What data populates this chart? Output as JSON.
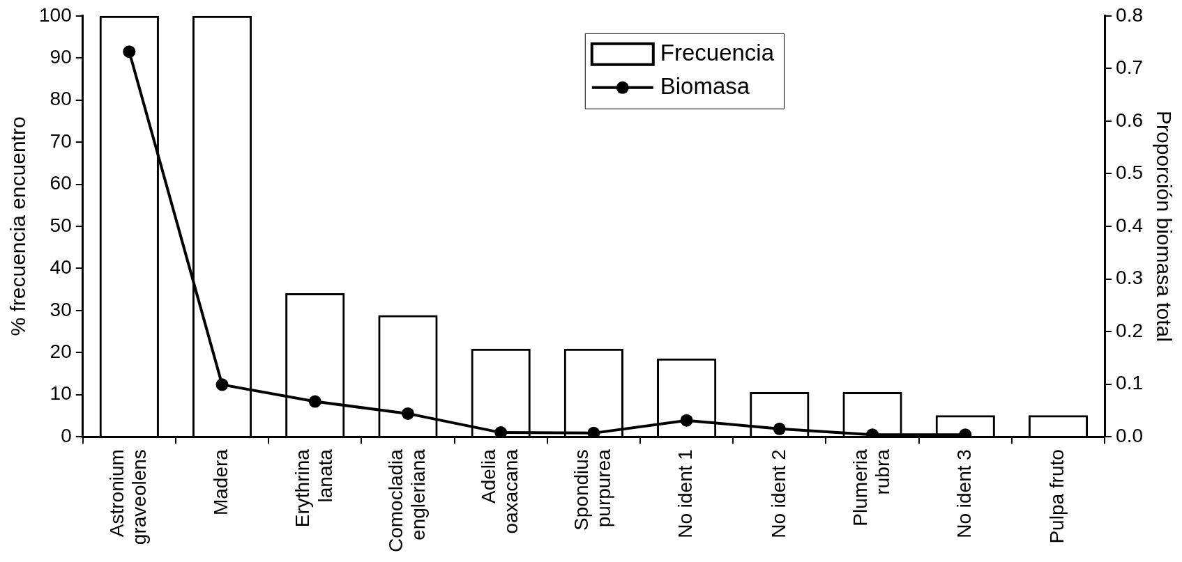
{
  "chart_data": {
    "type": "bar",
    "ylabel": "% frecuencia encuentro",
    "y2label": "Proporción biomasa total",
    "categories": [
      "Astronium\ngraveolens",
      "Madera",
      "Erythrina\nlanata",
      "Comocladia\nengleriana",
      "Adelia\noaxacana",
      "Spondius\npurpurea",
      "No ident 1",
      "No ident 2",
      "Plumeria\nrubra",
      "No ident 3",
      "Pulpa fruto"
    ],
    "series": [
      {
        "name": "Frecuencia",
        "color": "#000000",
        "values": [
          100,
          100,
          34.1,
          28.9,
          20.9,
          20.9,
          18.6,
          10.6,
          10.6,
          5.1,
          5.1
        ]
      },
      {
        "name": "Biomasa",
        "type": "line",
        "axis": "y2",
        "color": "#000000",
        "values": [
          0.732,
          0.099,
          0.067,
          0.044,
          0.008,
          0.007,
          0.031,
          0.015,
          0.004,
          0.004,
          null
        ]
      }
    ],
    "ylim": [
      0,
      100
    ],
    "yticks": [
      0,
      10,
      20,
      30,
      40,
      50,
      60,
      70,
      80,
      90,
      100
    ],
    "y2lim": [
      0,
      0.8
    ],
    "y2ticks": [
      {
        "value": 0,
        "label": "0.0"
      },
      {
        "value": 0.1,
        "label": "0.1"
      },
      {
        "value": 0.2,
        "label": "0.2"
      },
      {
        "value": 0.3,
        "label": "0.3"
      },
      {
        "value": 0.4,
        "label": "0.4"
      },
      {
        "value": 0.5,
        "label": "0.5"
      },
      {
        "value": 0.6,
        "label": "0.6"
      },
      {
        "value": 0.7,
        "label": "0.7"
      },
      {
        "value": 0.8,
        "label": "0.8"
      }
    ],
    "grid": false,
    "legend": "top",
    "marker": "circle",
    "line_style": "solid"
  }
}
